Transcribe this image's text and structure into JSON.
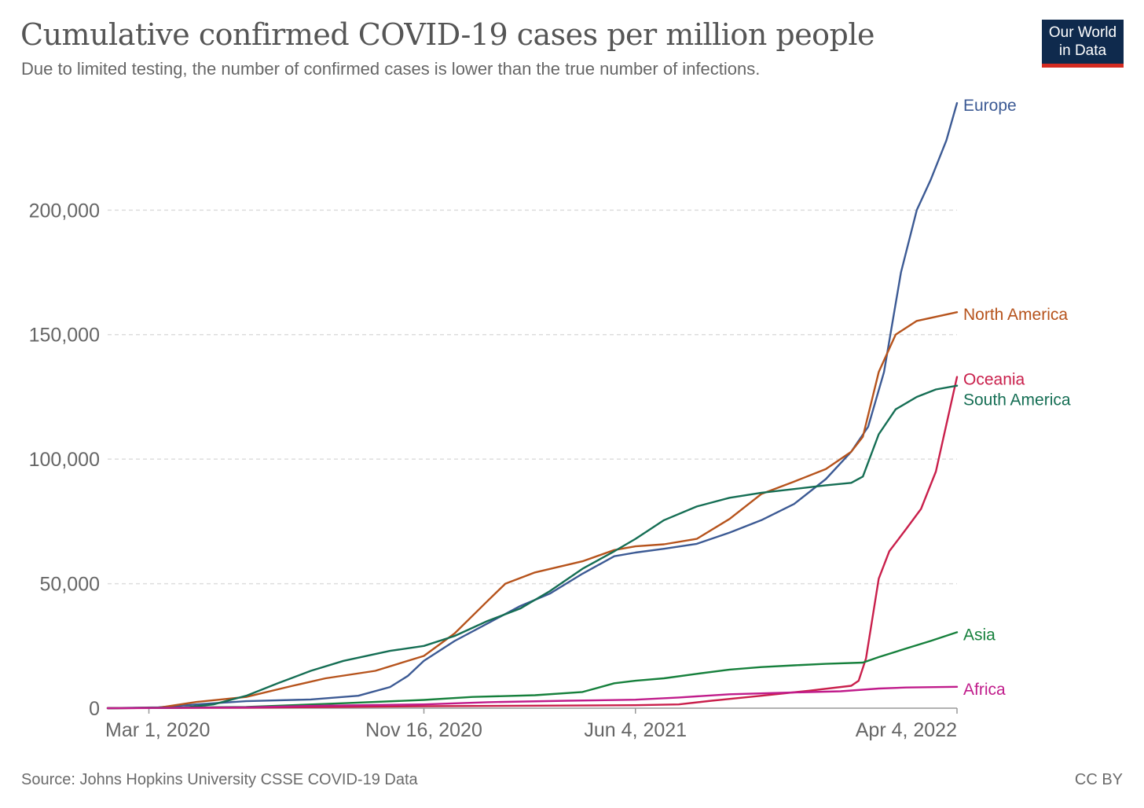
{
  "header": {
    "title": "Cumulative confirmed COVID-19 cases per million people",
    "subtitle": "Due to limited testing, the number of confirmed cases is lower than the true number of infections.",
    "logo_line1": "Our World",
    "logo_line2": "in Data"
  },
  "footer": {
    "source": "Source: Johns Hopkins University CSSE COVID-19 Data",
    "license": "CC BY"
  },
  "chart_data": {
    "type": "line",
    "xlim": [
      "2020-01-22",
      "2022-04-04"
    ],
    "ylim": [
      0,
      240000
    ],
    "x_ticks": [
      {
        "date": "2020-03-01",
        "label": "Mar 1, 2020"
      },
      {
        "date": "2020-11-16",
        "label": "Nov 16, 2020"
      },
      {
        "date": "2021-06-04",
        "label": "Jun 4, 2021"
      },
      {
        "date": "2022-04-04",
        "label": "Apr 4, 2022"
      }
    ],
    "y_ticks": [
      {
        "value": 0,
        "label": "0"
      },
      {
        "value": 50000,
        "label": "50,000"
      },
      {
        "value": 100000,
        "label": "100,000"
      },
      {
        "value": 150000,
        "label": "150,000"
      },
      {
        "value": 200000,
        "label": "200,000"
      }
    ],
    "grid": "horizontal dashed",
    "series": [
      {
        "name": "Europe",
        "color": "#3c5a94",
        "points": [
          [
            "2020-01-22",
            0
          ],
          [
            "2020-03-10",
            300
          ],
          [
            "2020-04-15",
            1500
          ],
          [
            "2020-06-01",
            2800
          ],
          [
            "2020-08-01",
            3500
          ],
          [
            "2020-09-15",
            5000
          ],
          [
            "2020-10-15",
            8500
          ],
          [
            "2020-11-01",
            13000
          ],
          [
            "2020-11-16",
            19000
          ],
          [
            "2020-12-15",
            27000
          ],
          [
            "2021-01-15",
            34000
          ],
          [
            "2021-02-15",
            41000
          ],
          [
            "2021-03-15",
            46000
          ],
          [
            "2021-04-15",
            54000
          ],
          [
            "2021-05-15",
            61000
          ],
          [
            "2021-06-04",
            62500
          ],
          [
            "2021-07-01",
            64000
          ],
          [
            "2021-08-01",
            66000
          ],
          [
            "2021-09-01",
            70500
          ],
          [
            "2021-10-01",
            75500
          ],
          [
            "2021-11-01",
            82000
          ],
          [
            "2021-12-01",
            92000
          ],
          [
            "2021-12-25",
            103000
          ],
          [
            "2022-01-10",
            113000
          ],
          [
            "2022-01-25",
            135000
          ],
          [
            "2022-02-10",
            175000
          ],
          [
            "2022-02-25",
            200000
          ],
          [
            "2022-03-10",
            212000
          ],
          [
            "2022-03-25",
            228000
          ],
          [
            "2022-04-04",
            243000
          ]
        ]
      },
      {
        "name": "North America",
        "color": "#b6531c",
        "points": [
          [
            "2020-01-22",
            0
          ],
          [
            "2020-03-10",
            200
          ],
          [
            "2020-04-15",
            2500
          ],
          [
            "2020-06-01",
            4500
          ],
          [
            "2020-07-15",
            9000
          ],
          [
            "2020-08-15",
            12000
          ],
          [
            "2020-10-01",
            15000
          ],
          [
            "2020-11-16",
            21000
          ],
          [
            "2020-12-15",
            30000
          ],
          [
            "2021-01-15",
            43000
          ],
          [
            "2021-02-01",
            50000
          ],
          [
            "2021-03-01",
            54500
          ],
          [
            "2021-04-15",
            59000
          ],
          [
            "2021-05-15",
            63500
          ],
          [
            "2021-06-04",
            65000
          ],
          [
            "2021-07-01",
            65800
          ],
          [
            "2021-08-01",
            68000
          ],
          [
            "2021-09-01",
            76000
          ],
          [
            "2021-10-01",
            86000
          ],
          [
            "2021-11-01",
            91000
          ],
          [
            "2021-12-01",
            96000
          ],
          [
            "2021-12-25",
            103000
          ],
          [
            "2022-01-05",
            109000
          ],
          [
            "2022-01-20",
            135000
          ],
          [
            "2022-02-05",
            150000
          ],
          [
            "2022-02-25",
            155500
          ],
          [
            "2022-04-04",
            159000
          ]
        ]
      },
      {
        "name": "Oceania",
        "color": "#c91f4b",
        "points": [
          [
            "2020-01-22",
            0
          ],
          [
            "2020-06-01",
            200
          ],
          [
            "2020-11-16",
            800
          ],
          [
            "2021-06-04",
            1200
          ],
          [
            "2021-07-15",
            1500
          ],
          [
            "2021-08-15",
            3000
          ],
          [
            "2021-10-01",
            5000
          ],
          [
            "2021-11-15",
            7000
          ],
          [
            "2021-12-25",
            9000
          ],
          [
            "2022-01-01",
            11000
          ],
          [
            "2022-01-08",
            20000
          ],
          [
            "2022-01-20",
            52000
          ],
          [
            "2022-01-30",
            63000
          ],
          [
            "2022-02-15",
            72000
          ],
          [
            "2022-03-01",
            80000
          ],
          [
            "2022-03-15",
            95000
          ],
          [
            "2022-04-04",
            133000
          ]
        ]
      },
      {
        "name": "South America",
        "color": "#156e54",
        "points": [
          [
            "2020-01-22",
            0
          ],
          [
            "2020-04-01",
            200
          ],
          [
            "2020-05-01",
            1500
          ],
          [
            "2020-06-01",
            5000
          ],
          [
            "2020-07-01",
            10000
          ],
          [
            "2020-08-01",
            15000
          ],
          [
            "2020-09-01",
            19000
          ],
          [
            "2020-10-15",
            23000
          ],
          [
            "2020-11-16",
            25000
          ],
          [
            "2020-12-15",
            29000
          ],
          [
            "2021-01-15",
            35000
          ],
          [
            "2021-02-15",
            40000
          ],
          [
            "2021-03-15",
            47000
          ],
          [
            "2021-04-15",
            56000
          ],
          [
            "2021-05-15",
            63000
          ],
          [
            "2021-06-04",
            68000
          ],
          [
            "2021-07-01",
            75500
          ],
          [
            "2021-08-01",
            81000
          ],
          [
            "2021-09-01",
            84500
          ],
          [
            "2021-10-01",
            86500
          ],
          [
            "2021-11-01",
            88000
          ],
          [
            "2021-12-01",
            89500
          ],
          [
            "2021-12-25",
            90500
          ],
          [
            "2022-01-05",
            93000
          ],
          [
            "2022-01-20",
            110000
          ],
          [
            "2022-02-05",
            120000
          ],
          [
            "2022-02-25",
            125000
          ],
          [
            "2022-03-15",
            128000
          ],
          [
            "2022-04-04",
            129500
          ]
        ]
      },
      {
        "name": "Asia",
        "color": "#16803c",
        "points": [
          [
            "2020-01-22",
            0
          ],
          [
            "2020-06-01",
            500
          ],
          [
            "2020-09-01",
            2000
          ],
          [
            "2020-11-16",
            3300
          ],
          [
            "2021-01-01",
            4500
          ],
          [
            "2021-03-01",
            5200
          ],
          [
            "2021-04-15",
            6500
          ],
          [
            "2021-05-15",
            10000
          ],
          [
            "2021-06-04",
            11000
          ],
          [
            "2021-07-01",
            12000
          ],
          [
            "2021-08-01",
            13800
          ],
          [
            "2021-09-01",
            15500
          ],
          [
            "2021-10-01",
            16500
          ],
          [
            "2021-11-01",
            17200
          ],
          [
            "2021-12-01",
            17800
          ],
          [
            "2022-01-05",
            18300
          ],
          [
            "2022-01-20",
            20500
          ],
          [
            "2022-02-15",
            24000
          ],
          [
            "2022-03-10",
            27000
          ],
          [
            "2022-04-04",
            30500
          ]
        ]
      },
      {
        "name": "Africa",
        "color": "#c01c8b",
        "points": [
          [
            "2020-01-22",
            0
          ],
          [
            "2020-06-01",
            300
          ],
          [
            "2020-08-01",
            900
          ],
          [
            "2020-11-16",
            1500
          ],
          [
            "2021-01-15",
            2400
          ],
          [
            "2021-04-01",
            3000
          ],
          [
            "2021-06-04",
            3400
          ],
          [
            "2021-07-15",
            4300
          ],
          [
            "2021-09-01",
            5600
          ],
          [
            "2021-11-01",
            6300
          ],
          [
            "2021-12-15",
            6800
          ],
          [
            "2022-01-20",
            7900
          ],
          [
            "2022-02-15",
            8300
          ],
          [
            "2022-04-04",
            8600
          ]
        ]
      }
    ]
  }
}
